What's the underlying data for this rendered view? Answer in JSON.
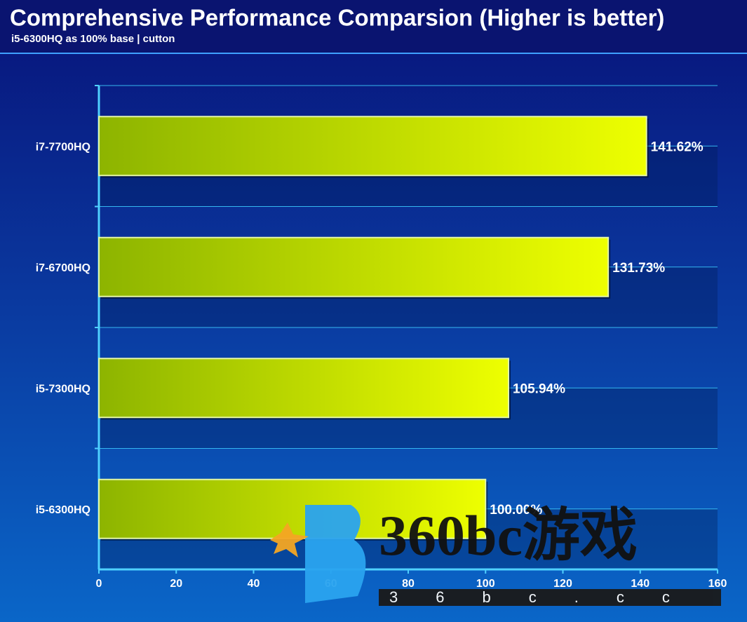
{
  "chart_data": {
    "type": "bar",
    "orientation": "horizontal",
    "title": "Comprehensive Performance Comparsion (Higher is better)",
    "subtitle": "i5-6300HQ as 100% base | cutton",
    "categories": [
      "i7-7700HQ",
      "i7-6700HQ",
      "i5-7300HQ",
      "i5-6300HQ"
    ],
    "values": [
      141.62,
      131.73,
      105.94,
      100.0
    ],
    "value_labels": [
      "141.62%",
      "131.73%",
      "105.94%",
      "100.00%"
    ],
    "color": "#c8e600",
    "xlim": [
      0,
      160
    ],
    "xticks": [
      0,
      20,
      40,
      60,
      80,
      100,
      120,
      140,
      160
    ],
    "watermark": "360bc游戏",
    "watermark_url": "36bc.cc"
  }
}
